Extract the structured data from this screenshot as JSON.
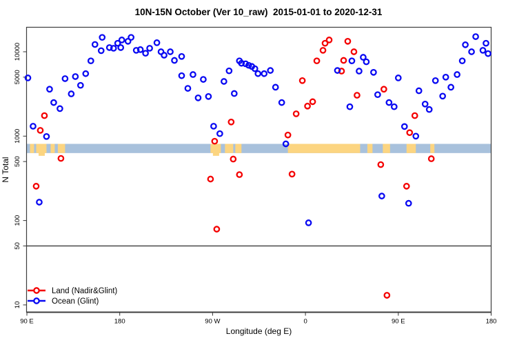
{
  "title": "10N-15N October (Ver 10_raw)  2015-01-01 to 2020-12-31",
  "chart_data": {
    "type": "scatter",
    "title": "10N-15N October (Ver 10_raw)  2015-01-01 to 2020-12-31",
    "xlabel": "Longitude (deg E)",
    "ylabel": "N Total",
    "x_axis": {
      "range_deg_east_continuous": [
        90,
        540
      ],
      "ticks": [
        {
          "lon": 90,
          "label": "90 E"
        },
        {
          "lon": 180,
          "label": "180"
        },
        {
          "lon": 270,
          "label": "90 W"
        },
        {
          "lon": 360,
          "label": "0"
        },
        {
          "lon": 450,
          "label": "90 E"
        },
        {
          "lon": 540,
          "label": "180"
        }
      ]
    },
    "y_axis": {
      "scale": "log10",
      "range": [
        8.3,
        19300
      ],
      "ticks": [
        10,
        50,
        100,
        500,
        1000,
        5000,
        10000
      ],
      "tick_labels": [
        "10",
        "50",
        "100",
        "500",
        "1000",
        "5000",
        "10000"
      ]
    },
    "reference_line_n": 50,
    "land_ocean_band": {
      "description": "land/ocean mask strip along 10N-15N",
      "n_range": [
        630,
        810
      ],
      "ocean_color": "#a8c1dc",
      "land_color": "#fcd581",
      "land_segments_lon": [
        {
          "from": 93,
          "to": 97
        },
        {
          "from": 99,
          "to": 109,
          "notch": true
        },
        {
          "from": 113,
          "to": 117
        },
        {
          "from": 120,
          "to": 127
        },
        {
          "from": 268,
          "to": 278,
          "notch": true
        },
        {
          "from": 282,
          "to": 290
        },
        {
          "from": 292,
          "to": 298
        },
        {
          "from": 343,
          "to": 413
        },
        {
          "from": 420,
          "to": 425
        },
        {
          "from": 435,
          "to": 442
        },
        {
          "from": 458,
          "to": 467
        },
        {
          "from": 481,
          "to": 485
        }
      ]
    },
    "legend": {
      "position": "bottom-left",
      "entries": [
        "Land (Nadir&Glint)",
        "Ocean (Glint)"
      ]
    },
    "series": [
      {
        "name": "Land (Nadir&Glint)",
        "color": "#f40000",
        "marker": "open-circle",
        "points": [
          [
            99,
            255
          ],
          [
            103,
            1170
          ],
          [
            107,
            1750
          ],
          [
            123,
            545
          ],
          [
            268,
            310
          ],
          [
            272,
            870
          ],
          [
            274,
            79
          ],
          [
            288,
            1470
          ],
          [
            290,
            535
          ],
          [
            296,
            350
          ],
          [
            343,
            1030
          ],
          [
            347,
            355
          ],
          [
            351,
            1840
          ],
          [
            357,
            4550
          ],
          [
            362,
            2270
          ],
          [
            367,
            2560
          ],
          [
            371,
            7800
          ],
          [
            377,
            10400
          ],
          [
            379,
            12600
          ],
          [
            383,
            13800
          ],
          [
            395,
            5900
          ],
          [
            397,
            7900
          ],
          [
            401,
            13300
          ],
          [
            407,
            10000
          ],
          [
            410,
            3050
          ],
          [
            433,
            460
          ],
          [
            436,
            3600
          ],
          [
            439,
            13
          ],
          [
            458,
            255
          ],
          [
            461,
            1100
          ],
          [
            466,
            1750
          ],
          [
            482,
            540
          ]
        ]
      },
      {
        "name": "Ocean (Glint)",
        "color": "#0909f2",
        "marker": "open-circle",
        "points": [
          [
            91,
            4900
          ],
          [
            96,
            1310
          ],
          [
            102,
            165
          ],
          [
            109,
            990
          ],
          [
            112,
            3600
          ],
          [
            116,
            2500
          ],
          [
            122,
            2120
          ],
          [
            127,
            4800
          ],
          [
            133,
            3170
          ],
          [
            137,
            5080
          ],
          [
            142,
            4000
          ],
          [
            147,
            5500
          ],
          [
            152,
            7800
          ],
          [
            156,
            12200
          ],
          [
            162,
            10300
          ],
          [
            163,
            14800
          ],
          [
            170,
            11200
          ],
          [
            174,
            11000
          ],
          [
            178,
            12600
          ],
          [
            181,
            11200
          ],
          [
            182,
            13800
          ],
          [
            188,
            13300
          ],
          [
            191,
            14800
          ],
          [
            196,
            10400
          ],
          [
            200,
            10600
          ],
          [
            205,
            9600
          ],
          [
            209,
            11000
          ],
          [
            216,
            12800
          ],
          [
            220,
            10000
          ],
          [
            223,
            9100
          ],
          [
            229,
            10000
          ],
          [
            233,
            7900
          ],
          [
            240,
            8800
          ],
          [
            240,
            5200
          ],
          [
            246,
            3680
          ],
          [
            251,
            5370
          ],
          [
            256,
            2840
          ],
          [
            261,
            4700
          ],
          [
            266,
            2950
          ],
          [
            271,
            1310
          ],
          [
            277,
            1070
          ],
          [
            281,
            4450
          ],
          [
            286,
            5940
          ],
          [
            291,
            3200
          ],
          [
            296,
            7800
          ],
          [
            298,
            7300
          ],
          [
            302,
            7200
          ],
          [
            305,
            6900
          ],
          [
            308,
            6700
          ],
          [
            311,
            6300
          ],
          [
            314,
            5500
          ],
          [
            320,
            5500
          ],
          [
            326,
            6000
          ],
          [
            331,
            3800
          ],
          [
            337,
            2500
          ],
          [
            341,
            810
          ],
          [
            363,
            94
          ],
          [
            391,
            6000
          ],
          [
            403,
            2230
          ],
          [
            405,
            7800
          ],
          [
            412,
            5900
          ],
          [
            416,
            8600
          ],
          [
            419,
            7600
          ],
          [
            426,
            5700
          ],
          [
            430,
            3100
          ],
          [
            434,
            195
          ],
          [
            441,
            2500
          ],
          [
            446,
            2230
          ],
          [
            450,
            4900
          ],
          [
            456,
            1300
          ],
          [
            460,
            160
          ],
          [
            467,
            1000
          ],
          [
            470,
            3450
          ],
          [
            476,
            2400
          ],
          [
            480,
            2070
          ],
          [
            486,
            4550
          ],
          [
            493,
            2980
          ],
          [
            496,
            5000
          ],
          [
            501,
            3800
          ],
          [
            507,
            5370
          ],
          [
            512,
            7800
          ],
          [
            515,
            12100
          ],
          [
            521,
            10000
          ],
          [
            525,
            15100
          ],
          [
            532,
            10400
          ],
          [
            535,
            12600
          ],
          [
            537,
            9500
          ]
        ]
      }
    ]
  }
}
